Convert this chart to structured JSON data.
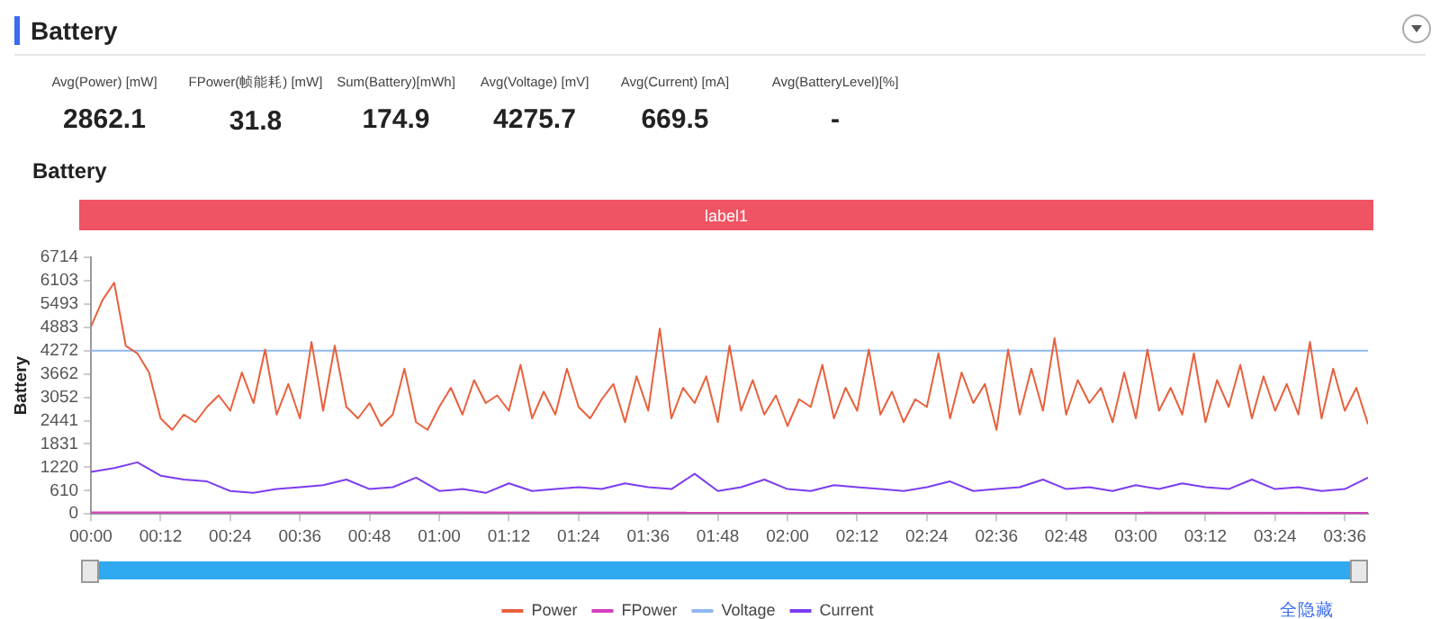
{
  "chart_data": [
    {
      "type": "other",
      "title": "Battery",
      "categories": [
        "Avg(Power) [mW]",
        "FPower(帧能耗) [mW]",
        "Sum(Battery)[mWh]",
        "Avg(Voltage) [mV]",
        "Avg(Current) [mA]",
        "Avg(BatteryLevel)[%]"
      ],
      "value_labels": [
        "2862.1",
        "31.8",
        "174.9",
        "4275.7",
        "669.5",
        "-"
      ]
    },
    {
      "type": "line",
      "title": "Battery",
      "ylabel": "Battery",
      "legend": "bottom",
      "marker": "none",
      "line_style": "solid",
      "grid": false,
      "xlim": [
        0,
        220
      ],
      "xticks": [
        {
          "value": 0,
          "label": "00:00"
        },
        {
          "value": 12,
          "label": "00:12"
        },
        {
          "value": 24,
          "label": "00:24"
        },
        {
          "value": 36,
          "label": "00:36"
        },
        {
          "value": 48,
          "label": "00:48"
        },
        {
          "value": 60,
          "label": "01:00"
        },
        {
          "value": 72,
          "label": "01:12"
        },
        {
          "value": 84,
          "label": "01:24"
        },
        {
          "value": 96,
          "label": "01:36"
        },
        {
          "value": 108,
          "label": "01:48"
        },
        {
          "value": 120,
          "label": "02:00"
        },
        {
          "value": 132,
          "label": "02:12"
        },
        {
          "value": 144,
          "label": "02:24"
        },
        {
          "value": 156,
          "label": "02:36"
        },
        {
          "value": 168,
          "label": "02:48"
        },
        {
          "value": 180,
          "label": "03:00"
        },
        {
          "value": 192,
          "label": "03:12"
        },
        {
          "value": 204,
          "label": "03:24"
        },
        {
          "value": 216,
          "label": "03:36"
        }
      ],
      "ylim": [
        0,
        6714
      ],
      "yticks": [
        0,
        610,
        1220,
        1831,
        2441,
        3052,
        3662,
        4272,
        4883,
        5493,
        6103,
        6714
      ],
      "annotations": [
        "label1",
        "全隐藏"
      ],
      "series": [
        {
          "name": "Power",
          "color": "#e8603c",
          "x": [
            0,
            2,
            4,
            6,
            8,
            10,
            12,
            14,
            16,
            18,
            20,
            22,
            24,
            26,
            28,
            30,
            32,
            34,
            36,
            38,
            40,
            42,
            44,
            46,
            48,
            50,
            52,
            54,
            56,
            58,
            60,
            62,
            64,
            66,
            68,
            70,
            72,
            74,
            76,
            78,
            80,
            82,
            84,
            86,
            88,
            90,
            92,
            94,
            96,
            98,
            100,
            102,
            104,
            106,
            108,
            110,
            112,
            114,
            116,
            118,
            120,
            122,
            124,
            126,
            128,
            130,
            132,
            134,
            136,
            138,
            140,
            142,
            144,
            146,
            148,
            150,
            152,
            154,
            156,
            158,
            160,
            162,
            164,
            166,
            168,
            170,
            172,
            174,
            176,
            178,
            180,
            182,
            184,
            186,
            188,
            190,
            192,
            194,
            196,
            198,
            200,
            202,
            204,
            206,
            208,
            210,
            212,
            214,
            216,
            218,
            220
          ],
          "values": [
            4900,
            5600,
            6050,
            4400,
            4200,
            3700,
            2500,
            2200,
            2600,
            2400,
            2800,
            3100,
            2700,
            3700,
            2900,
            4300,
            2600,
            3400,
            2500,
            4500,
            2700,
            4400,
            2800,
            2500,
            2900,
            2300,
            2600,
            3800,
            2400,
            2200,
            2800,
            3300,
            2600,
            3500,
            2900,
            3100,
            2700,
            3900,
            2500,
            3200,
            2600,
            3800,
            2800,
            2500,
            3000,
            3400,
            2400,
            3600,
            2700,
            4850,
            2500,
            3300,
            2900,
            3600,
            2400,
            4400,
            2700,
            3500,
            2600,
            3100,
            2300,
            3000,
            2800,
            3900,
            2500,
            3300,
            2700,
            4300,
            2600,
            3200,
            2400,
            3000,
            2800,
            4200,
            2500,
            3700,
            2900,
            3400,
            2200,
            4300,
            2600,
            3800,
            2700,
            4600,
            2600,
            3500,
            2900,
            3300,
            2400,
            3700,
            2500,
            4300,
            2700,
            3300,
            2600,
            4200,
            2400,
            3500,
            2800,
            3900,
            2500,
            3600,
            2700,
            3400,
            2600,
            4500,
            2500,
            3800,
            2700,
            3300,
            2350
          ]
        },
        {
          "name": "FPower",
          "color": "#d63fbe",
          "x": [
            0,
            220
          ],
          "values": [
            40,
            30
          ]
        },
        {
          "name": "Voltage",
          "color": "#8fb8f0",
          "x": [
            0,
            220
          ],
          "values": [
            4270,
            4270
          ]
        },
        {
          "name": "Current",
          "color": "#7d3cf0",
          "x": [
            0,
            4,
            8,
            12,
            16,
            20,
            24,
            28,
            32,
            36,
            40,
            44,
            48,
            52,
            56,
            60,
            64,
            68,
            72,
            76,
            80,
            84,
            88,
            92,
            96,
            100,
            104,
            108,
            112,
            116,
            120,
            124,
            128,
            132,
            136,
            140,
            144,
            148,
            152,
            156,
            160,
            164,
            168,
            172,
            176,
            180,
            184,
            188,
            192,
            196,
            200,
            204,
            208,
            212,
            216,
            220
          ],
          "values": [
            1100,
            1200,
            1350,
            1000,
            900,
            850,
            600,
            550,
            650,
            700,
            750,
            900,
            650,
            700,
            950,
            600,
            650,
            550,
            800,
            600,
            650,
            700,
            650,
            800,
            700,
            650,
            1050,
            600,
            700,
            900,
            650,
            600,
            750,
            700,
            650,
            600,
            700,
            850,
            600,
            650,
            700,
            900,
            650,
            700,
            600,
            750,
            650,
            800,
            700,
            650,
            900,
            650,
            700,
            600,
            650,
            950
          ]
        }
      ]
    }
  ]
}
